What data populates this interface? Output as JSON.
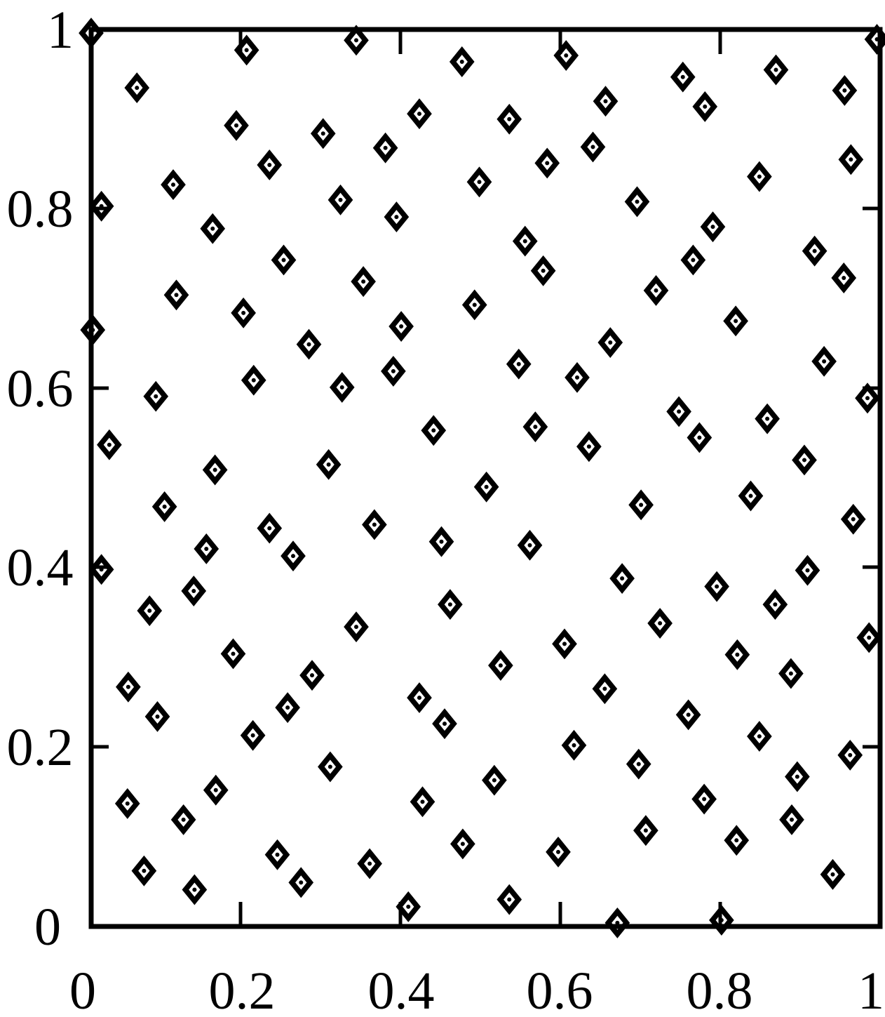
{
  "chart_data": {
    "type": "scatter",
    "title": "",
    "xlabel": "",
    "ylabel": "",
    "xlim": [
      0,
      1
    ],
    "ylim": [
      0,
      1
    ],
    "x_ticks": [
      "0",
      "0.2",
      "0.4",
      "0.6",
      "0.8",
      "1"
    ],
    "y_ticks": [
      "0",
      "0.2",
      "0.4",
      "0.6",
      "0.8",
      "1"
    ],
    "grid": false,
    "legend": "none",
    "marker": "diamond-with-center-dot",
    "series": [
      {
        "points": [
          [
            0.0,
            0.996
          ],
          [
            0.197,
            0.977
          ],
          [
            0.336,
            0.988
          ],
          [
            0.47,
            0.964
          ],
          [
            0.602,
            0.971
          ],
          [
            0.996,
            0.989
          ],
          [
            0.058,
            0.935
          ],
          [
            0.184,
            0.893
          ],
          [
            0.294,
            0.884
          ],
          [
            0.416,
            0.906
          ],
          [
            0.53,
            0.9
          ],
          [
            0.652,
            0.92
          ],
          [
            0.75,
            0.947
          ],
          [
            0.778,
            0.914
          ],
          [
            0.868,
            0.955
          ],
          [
            0.955,
            0.932
          ],
          [
            0.226,
            0.849
          ],
          [
            0.373,
            0.868
          ],
          [
            0.492,
            0.83
          ],
          [
            0.578,
            0.851
          ],
          [
            0.636,
            0.869
          ],
          [
            0.847,
            0.836
          ],
          [
            0.963,
            0.855
          ],
          [
            0.013,
            0.803
          ],
          [
            0.104,
            0.827
          ],
          [
            0.154,
            0.778
          ],
          [
            0.316,
            0.81
          ],
          [
            0.387,
            0.791
          ],
          [
            0.692,
            0.808
          ],
          [
            0.788,
            0.78
          ],
          [
            0.244,
            0.743
          ],
          [
            0.345,
            0.719
          ],
          [
            0.55,
            0.764
          ],
          [
            0.573,
            0.731
          ],
          [
            0.716,
            0.709
          ],
          [
            0.763,
            0.743
          ],
          [
            0.917,
            0.753
          ],
          [
            0.954,
            0.723
          ],
          [
            0.002,
            0.665
          ],
          [
            0.108,
            0.704
          ],
          [
            0.193,
            0.684
          ],
          [
            0.276,
            0.649
          ],
          [
            0.393,
            0.669
          ],
          [
            0.486,
            0.693
          ],
          [
            0.658,
            0.651
          ],
          [
            0.817,
            0.675
          ],
          [
            0.082,
            0.591
          ],
          [
            0.206,
            0.609
          ],
          [
            0.318,
            0.601
          ],
          [
            0.383,
            0.619
          ],
          [
            0.434,
            0.553
          ],
          [
            0.542,
            0.627
          ],
          [
            0.563,
            0.557
          ],
          [
            0.616,
            0.612
          ],
          [
            0.745,
            0.574
          ],
          [
            0.771,
            0.545
          ],
          [
            0.857,
            0.566
          ],
          [
            0.929,
            0.63
          ],
          [
            0.984,
            0.589
          ],
          [
            0.023,
            0.537
          ],
          [
            0.157,
            0.509
          ],
          [
            0.301,
            0.515
          ],
          [
            0.501,
            0.49
          ],
          [
            0.631,
            0.535
          ],
          [
            0.836,
            0.48
          ],
          [
            0.904,
            0.52
          ],
          [
            0.093,
            0.468
          ],
          [
            0.226,
            0.444
          ],
          [
            0.359,
            0.448
          ],
          [
            0.444,
            0.429
          ],
          [
            0.556,
            0.425
          ],
          [
            0.697,
            0.47
          ],
          [
            0.966,
            0.454
          ],
          [
            0.013,
            0.398
          ],
          [
            0.074,
            0.352
          ],
          [
            0.13,
            0.374
          ],
          [
            0.146,
            0.421
          ],
          [
            0.256,
            0.413
          ],
          [
            0.455,
            0.359
          ],
          [
            0.673,
            0.388
          ],
          [
            0.793,
            0.379
          ],
          [
            0.867,
            0.359
          ],
          [
            0.908,
            0.397
          ],
          [
            0.047,
            0.267
          ],
          [
            0.084,
            0.234
          ],
          [
            0.18,
            0.304
          ],
          [
            0.28,
            0.28
          ],
          [
            0.336,
            0.334
          ],
          [
            0.519,
            0.291
          ],
          [
            0.6,
            0.315
          ],
          [
            0.651,
            0.265
          ],
          [
            0.721,
            0.338
          ],
          [
            0.819,
            0.303
          ],
          [
            0.887,
            0.282
          ],
          [
            0.986,
            0.322
          ],
          [
            0.205,
            0.213
          ],
          [
            0.249,
            0.244
          ],
          [
            0.416,
            0.255
          ],
          [
            0.448,
            0.226
          ],
          [
            0.612,
            0.202
          ],
          [
            0.757,
            0.236
          ],
          [
            0.847,
            0.212
          ],
          [
            0.962,
            0.191
          ],
          [
            0.046,
            0.137
          ],
          [
            0.117,
            0.119
          ],
          [
            0.158,
            0.152
          ],
          [
            0.303,
            0.178
          ],
          [
            0.42,
            0.139
          ],
          [
            0.511,
            0.163
          ],
          [
            0.694,
            0.181
          ],
          [
            0.777,
            0.142
          ],
          [
            0.895,
            0.167
          ],
          [
            0.067,
            0.062
          ],
          [
            0.131,
            0.041
          ],
          [
            0.236,
            0.08
          ],
          [
            0.266,
            0.049
          ],
          [
            0.353,
            0.07
          ],
          [
            0.402,
            0.022
          ],
          [
            0.471,
            0.092
          ],
          [
            0.53,
            0.03
          ],
          [
            0.592,
            0.083
          ],
          [
            0.703,
            0.107
          ],
          [
            0.818,
            0.096
          ],
          [
            0.888,
            0.119
          ],
          [
            0.94,
            0.058
          ],
          [
            0.667,
            0.004
          ],
          [
            0.799,
            0.007
          ]
        ]
      }
    ]
  }
}
